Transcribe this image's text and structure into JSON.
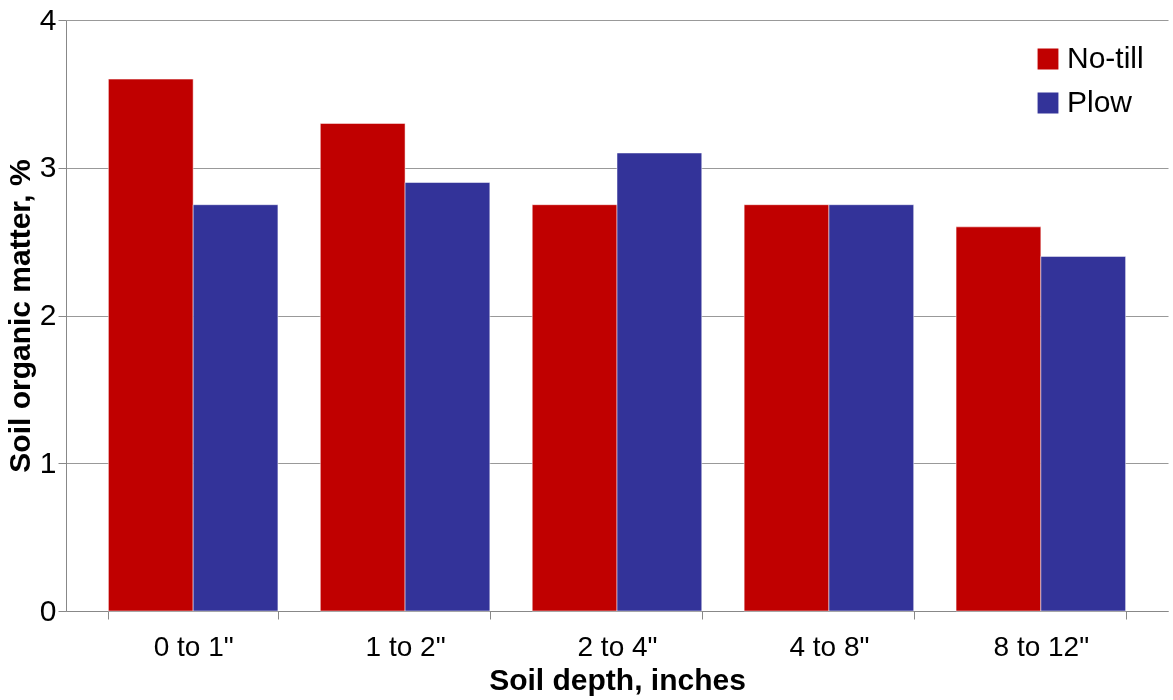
{
  "chart_data": {
    "type": "bar",
    "xlabel": "Soil depth, inches",
    "ylabel": "Soil organic matter, %",
    "categories": [
      "0 to 1\"",
      "1 to 2\"",
      "2 to 4\"",
      "4 to 8\"",
      "8 to 12\""
    ],
    "series": [
      {
        "name": "No-till",
        "color": "#c00000",
        "values": [
          3.6,
          3.3,
          2.75,
          2.75,
          2.6
        ]
      },
      {
        "name": "Plow",
        "color": "#333399",
        "values": [
          2.75,
          2.9,
          3.1,
          2.75,
          2.4
        ]
      }
    ],
    "ylim": [
      0,
      4
    ],
    "yticks": [
      0,
      1,
      2,
      3,
      4
    ],
    "grid": "y",
    "legend": "top right"
  }
}
